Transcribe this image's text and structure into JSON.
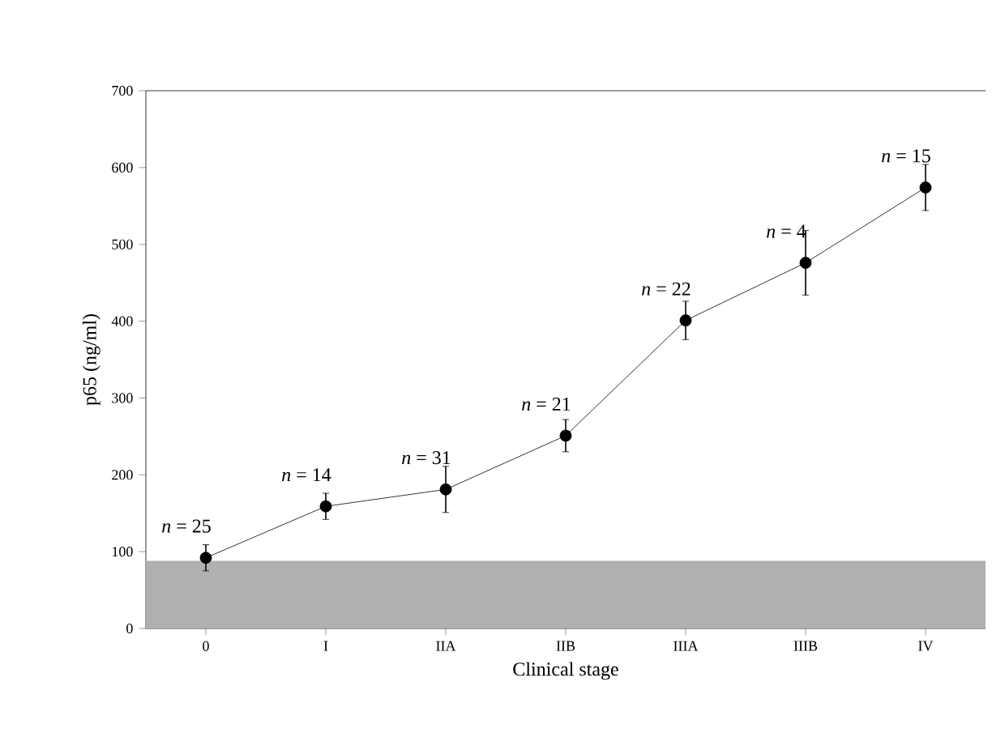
{
  "chart_data": {
    "type": "line",
    "xlabel": "Clinical stage",
    "ylabel": "p65 (ng/ml)",
    "categories": [
      "0",
      "I",
      "IIA",
      "IIB",
      "IIIA",
      "IIIB",
      "IV"
    ],
    "series": [
      {
        "color": "#000000",
        "values": [
          92,
          159,
          181,
          251,
          401,
          476,
          574
        ],
        "errors": [
          17,
          17,
          30,
          21,
          25,
          42,
          30
        ]
      }
    ],
    "ylim": [
      0,
      700
    ],
    "yticks": [
      0,
      100,
      200,
      300,
      400,
      500,
      600,
      700
    ],
    "marker": "circle",
    "line_style": "solid",
    "grid": false,
    "bands": [
      {
        "axis": "y",
        "from": 0,
        "to": 88,
        "color": "#b0b0b0"
      }
    ],
    "annotations": [
      {
        "text": "*n* = 25",
        "x": "0",
        "y": 92
      },
      {
        "text": "*n* = 14",
        "x": "I",
        "y": 159
      },
      {
        "text": "*n* = 31",
        "x": "IIA",
        "y": 181
      },
      {
        "text": "*n* = 21",
        "x": "IIB",
        "y": 251
      },
      {
        "text": "*n* = 22",
        "x": "IIIA",
        "y": 401
      },
      {
        "text": "*n* = 4",
        "x": "IIIB",
        "y": 476
      },
      {
        "text": "*n* = 15",
        "x": "IV",
        "y": 574
      }
    ]
  }
}
